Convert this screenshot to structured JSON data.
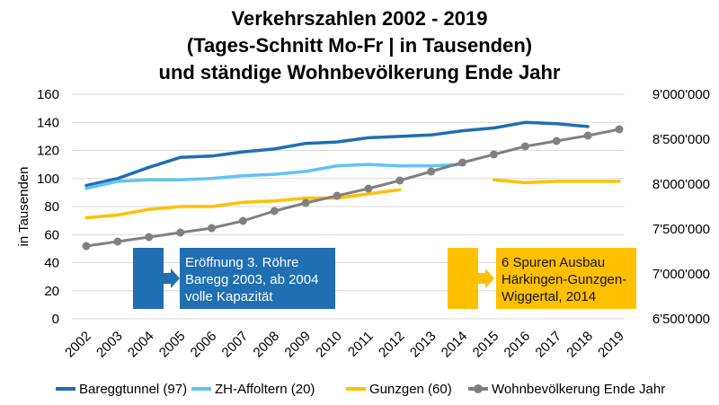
{
  "chart_data": {
    "type": "line",
    "title": [
      "Verkehrszahlen 2002 - 2019",
      "(Tages-Schnitt Mo-Fr | in Tausenden)",
      "und ständige Wohnbevölkerung Ende Jahr"
    ],
    "ylabel": "in Tausenden",
    "ylim": [
      0,
      160
    ],
    "yticks": [
      0,
      20,
      40,
      60,
      80,
      100,
      120,
      140,
      160
    ],
    "y2lim": [
      6500000,
      9000000
    ],
    "y2ticks": [
      "6'500'000",
      "7'000'000",
      "7'500'000",
      "8'000'000",
      "8'500'000",
      "9'000'000"
    ],
    "x": [
      "2002",
      "2003",
      "2004",
      "2005",
      "2006",
      "2007",
      "2008",
      "2009",
      "2010",
      "2011",
      "2012",
      "2013",
      "2014",
      "2015",
      "2016",
      "2017",
      "2018",
      "2019"
    ],
    "grid": true,
    "legend_position": "bottom",
    "series": [
      {
        "name": "Bareggtunnel (97)",
        "axis": "left",
        "color": "#1f6fb2",
        "values": [
          95,
          100,
          108,
          115,
          116,
          119,
          121,
          125,
          126,
          129,
          130,
          131,
          134,
          136,
          140,
          139,
          137,
          null
        ]
      },
      {
        "name": "ZH-Affoltern (20)",
        "axis": "left",
        "color": "#5fc3f5",
        "values": [
          93,
          98,
          99,
          99,
          100,
          102,
          103,
          105,
          109,
          110,
          109,
          109,
          110,
          null,
          null,
          null,
          null,
          null
        ]
      },
      {
        "name": "Gunzgen (60)",
        "axis": "left",
        "color": "#ffc000",
        "values": [
          72,
          74,
          78,
          80,
          80,
          83,
          84,
          86,
          86,
          89,
          92,
          null,
          null,
          99,
          97,
          98,
          98,
          98
        ]
      },
      {
        "name": "Wohnbevölkerung Ende Jahr",
        "axis": "right",
        "color": "#808080",
        "marker": "circle",
        "values": [
          7310000,
          7360000,
          7410000,
          7460000,
          7510000,
          7590000,
          7700000,
          7790000,
          7870000,
          7950000,
          8040000,
          8140000,
          8240000,
          8330000,
          8420000,
          8480000,
          8540000,
          8610000
        ]
      }
    ],
    "annotations": [
      {
        "text": [
          "Eröffnung 3. Röhre",
          "Baregg 2003, ab 2004",
          "volle Kapazität"
        ],
        "color": "#1f6fb2"
      },
      {
        "text": [
          "6 Spuren Ausbau",
          "Härkingen-Gunzgen-",
          "Wiggertal, 2014"
        ],
        "color": "#ffc000"
      }
    ]
  }
}
